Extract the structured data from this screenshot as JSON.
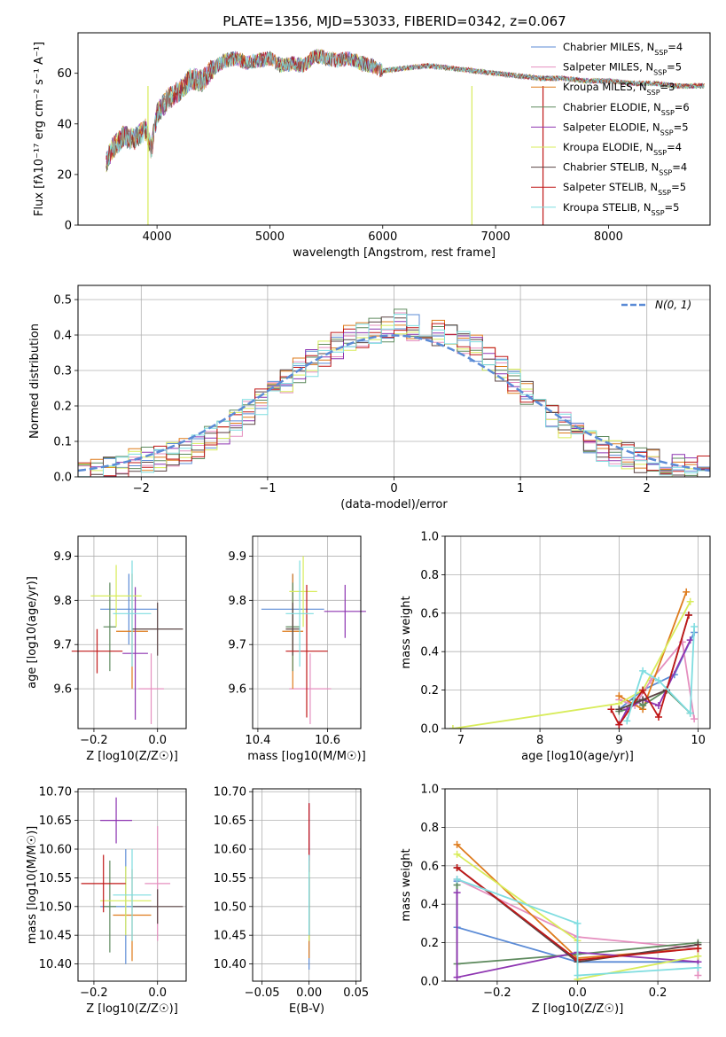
{
  "figure_title": "PLATE=1356, MJD=53033, FIBERID=0342, z=0.067",
  "colors": {
    "chabrier_miles": "#5b8bd6",
    "salpeter_miles": "#e58fbf",
    "kroupa_miles": "#de7b1c",
    "chabrier_elodie": "#5e8a5e",
    "salpeter_elodie": "#8e35b1",
    "kroupa_elodie": "#d8ec5a",
    "chabrier_stelib": "#5a4444",
    "salpeter_stelib": "#c01818",
    "kroupa_stelib": "#7fdde0",
    "gaussian": "#5b8bd6",
    "grid": "#b0b0b0"
  },
  "chart_data": [
    {
      "id": "spectrum",
      "type": "line",
      "title": "PLATE=1356, MJD=53033, FIBERID=0342, z=0.067",
      "xlabel": "wavelength [Angstrom, rest frame]",
      "ylabel": "Flux [f_λ 10^-17 erg cm^-2 s^-1 A^-1]",
      "xlim": [
        3300,
        8900
      ],
      "ylim": [
        0,
        76
      ],
      "xticks": [
        4000,
        5000,
        6000,
        7000,
        8000
      ],
      "yticks": [
        0,
        20,
        40,
        60
      ],
      "grid": false,
      "legend_position": "top-right",
      "x": [
        3550,
        3600,
        3700,
        3800,
        3900,
        3950,
        4000,
        4100,
        4200,
        4300,
        4400,
        4500,
        4600,
        4700,
        4800,
        4900,
        5000,
        5100,
        5200,
        5300,
        5400,
        5500,
        5600,
        5700,
        5800,
        5900,
        6000,
        6200,
        6400,
        6600,
        6800,
        7000,
        7200,
        7400,
        7600,
        7800,
        8000,
        8200,
        8400,
        8600,
        8800
      ],
      "y": [
        25,
        30,
        35,
        34,
        38,
        30,
        44,
        50,
        53,
        58,
        57,
        62,
        65,
        66,
        64,
        65,
        66,
        63,
        64,
        63,
        67,
        66,
        65,
        66,
        64,
        63,
        61,
        62,
        63,
        62,
        61,
        60,
        59,
        58,
        58,
        57,
        57,
        56,
        56,
        55,
        55
      ],
      "series": [
        {
          "name": "Chabrier MILES, N_SSP=4",
          "label": "Chabrier MILES, N",
          "sub": "SSP",
          "value": "=4",
          "color": "#5b8bd6"
        },
        {
          "name": "Salpeter MILES, N_SSP=5",
          "label": "Salpeter MILES, N",
          "sub": "SSP",
          "value": "=5",
          "color": "#e58fbf"
        },
        {
          "name": "Kroupa MILES, N_SSP=3",
          "label": "Kroupa MILES, N",
          "sub": "SSP",
          "value": "=3",
          "color": "#de7b1c"
        },
        {
          "name": "Chabrier ELODIE, N_SSP=6",
          "label": "Chabrier ELODIE, N",
          "sub": "SSP",
          "value": "=6",
          "color": "#5e8a5e"
        },
        {
          "name": "Salpeter ELODIE, N_SSP=5",
          "label": "Salpeter ELODIE, N",
          "sub": "SSP",
          "value": "=5",
          "color": "#8e35b1"
        },
        {
          "name": "Kroupa ELODIE, N_SSP=4",
          "label": "Kroupa ELODIE, N",
          "sub": "SSP",
          "value": "=4",
          "color": "#d8ec5a"
        },
        {
          "name": "Chabrier STELIB, N_SSP=4",
          "label": "Chabrier STELIB, N",
          "sub": "SSP",
          "value": "=4",
          "color": "#5a4444"
        },
        {
          "name": "Salpeter STELIB, N_SSP=5",
          "label": "Salpeter STELIB, N",
          "sub": "SSP",
          "value": "=5",
          "color": "#c01818"
        },
        {
          "name": "Kroupa STELIB, N_SSP=5",
          "label": "Kroupa STELIB, N",
          "sub": "SSP",
          "value": "=5",
          "color": "#7fdde0"
        }
      ],
      "spikes": [
        {
          "x": 3920,
          "color": "#d8ec5a"
        },
        {
          "x": 6790,
          "color": "#d8ec5a"
        },
        {
          "x": 7420,
          "color": "#c01818"
        }
      ]
    },
    {
      "id": "residuals",
      "type": "area",
      "xlabel": "(data-model)/error",
      "ylabel": "Normed distribution",
      "xlim": [
        -2.5,
        2.5
      ],
      "ylim": [
        0,
        0.54
      ],
      "xticks": [
        -2,
        -1,
        0,
        1,
        2
      ],
      "yticks": [
        0.0,
        0.1,
        0.2,
        0.3,
        0.4,
        0.5
      ],
      "grid": true,
      "legend_position": "top-right",
      "legend_label": "N(0, 1)",
      "bin_edges_start": -2.5,
      "bin_width": 0.1,
      "histogram_counts": [
        0.01,
        0.02,
        0.02,
        0.03,
        0.04,
        0.05,
        0.05,
        0.06,
        0.07,
        0.09,
        0.11,
        0.13,
        0.15,
        0.18,
        0.21,
        0.24,
        0.27,
        0.3,
        0.32,
        0.35,
        0.37,
        0.39,
        0.4,
        0.41,
        0.42,
        0.44,
        0.42,
        0.42,
        0.41,
        0.4,
        0.38,
        0.36,
        0.33,
        0.3,
        0.27,
        0.24,
        0.21,
        0.18,
        0.15,
        0.12,
        0.1,
        0.08,
        0.07,
        0.06,
        0.05,
        0.04,
        0.03,
        0.03,
        0.02,
        0.02
      ],
      "series": [
        {
          "name": "Chabrier MILES, N_SSP=4",
          "color": "#5b8bd6"
        },
        {
          "name": "Salpeter MILES, N_SSP=5",
          "color": "#e58fbf"
        },
        {
          "name": "Kroupa MILES, N_SSP=3",
          "color": "#de7b1c"
        },
        {
          "name": "Chabrier ELODIE, N_SSP=6",
          "color": "#5e8a5e"
        },
        {
          "name": "Salpeter ELODIE, N_SSP=5",
          "color": "#8e35b1"
        },
        {
          "name": "Kroupa ELODIE, N_SSP=4",
          "color": "#d8ec5a"
        },
        {
          "name": "Chabrier STELIB, N_SSP=4",
          "color": "#5a4444"
        },
        {
          "name": "Salpeter STELIB, N_SSP=5",
          "color": "#c01818"
        },
        {
          "name": "Kroupa STELIB, N_SSP=5",
          "color": "#7fdde0"
        }
      ]
    },
    {
      "id": "age_vs_z",
      "type": "scatter",
      "xlabel": "Z [log10(Z/Z☉)]",
      "ylabel": "age [log10(age/yr)]",
      "xlim": [
        -0.25,
        0.09
      ],
      "ylim": [
        9.51,
        9.945
      ],
      "xticks": [
        -0.2,
        0.0
      ],
      "yticks": [
        9.6,
        9.7,
        9.8,
        9.9
      ],
      "grid": true,
      "points": [
        {
          "x": -0.09,
          "y": 9.78,
          "xerr": 0.09,
          "yerr": 0.08,
          "color": "#5b8bd6"
        },
        {
          "x": -0.02,
          "y": 9.6,
          "xerr": 0.04,
          "yerr": 0.08,
          "color": "#e58fbf"
        },
        {
          "x": -0.08,
          "y": 9.73,
          "xerr": 0.05,
          "yerr": 0.13,
          "color": "#de7b1c"
        },
        {
          "x": -0.15,
          "y": 9.74,
          "xerr": 0.02,
          "yerr": 0.1,
          "color": "#5e8a5e"
        },
        {
          "x": -0.07,
          "y": 9.68,
          "xerr": 0.04,
          "yerr": 0.15,
          "color": "#8e35b1"
        },
        {
          "x": -0.13,
          "y": 9.81,
          "xerr": 0.08,
          "yerr": 0.07,
          "color": "#d8ec5a"
        },
        {
          "x": 0.0,
          "y": 9.735,
          "xerr": 0.08,
          "yerr": 0.06,
          "color": "#5a4444"
        },
        {
          "x": -0.19,
          "y": 9.685,
          "xerr": 0.08,
          "yerr": 0.05,
          "color": "#c01818"
        },
        {
          "x": -0.08,
          "y": 9.77,
          "xerr": 0.06,
          "yerr": 0.12,
          "color": "#7fdde0"
        }
      ]
    },
    {
      "id": "age_vs_mass",
      "type": "scatter",
      "xlabel": "mass [log10(M/M☉)]",
      "ylabel": "",
      "xlim": [
        10.385,
        10.695
      ],
      "ylim": [
        9.51,
        9.945
      ],
      "xticks": [
        10.4,
        10.6
      ],
      "yticks": [
        9.6,
        9.7,
        9.8,
        9.9
      ],
      "grid": true,
      "points": [
        {
          "x": 10.5,
          "y": 9.78,
          "xerr": 0.09,
          "yerr": 0.08,
          "color": "#5b8bd6"
        },
        {
          "x": 10.55,
          "y": 9.6,
          "xerr": 0.06,
          "yerr": 0.08,
          "color": "#e58fbf"
        },
        {
          "x": 10.5,
          "y": 9.73,
          "xerr": 0.03,
          "yerr": 0.13,
          "color": "#de7b1c"
        },
        {
          "x": 10.5,
          "y": 9.74,
          "xerr": 0.02,
          "yerr": 0.1,
          "color": "#5e8a5e"
        },
        {
          "x": 10.65,
          "y": 9.775,
          "xerr": 0.06,
          "yerr": 0.06,
          "color": "#8e35b1"
        },
        {
          "x": 10.53,
          "y": 9.82,
          "xerr": 0.04,
          "yerr": 0.08,
          "color": "#d8ec5a"
        },
        {
          "x": 10.5,
          "y": 9.735,
          "xerr": 0.02,
          "yerr": 0.06,
          "color": "#5a4444"
        },
        {
          "x": 10.54,
          "y": 9.685,
          "xerr": 0.06,
          "yerr": 0.15,
          "color": "#c01818"
        },
        {
          "x": 10.52,
          "y": 9.77,
          "xerr": 0.04,
          "yerr": 0.12,
          "color": "#7fdde0"
        }
      ]
    },
    {
      "id": "massweight_vs_age",
      "type": "line",
      "xlabel": "age [log10(age/yr)]",
      "ylabel": "mass weight",
      "xlim": [
        6.8,
        10.15
      ],
      "ylim": [
        0,
        1.0
      ],
      "xticks": [
        7,
        8,
        9,
        10
      ],
      "yticks": [
        0.0,
        0.2,
        0.4,
        0.6,
        0.8,
        1.0
      ],
      "grid": true,
      "series": [
        {
          "name": "Chabrier MILES, N_SSP=4",
          "color": "#5b8bd6",
          "x": [
            9.0,
            9.3,
            9.7,
            9.95
          ],
          "y": [
            0.1,
            0.2,
            0.28,
            0.5
          ]
        },
        {
          "name": "Salpeter MILES, N_SSP=5",
          "color": "#e58fbf",
          "x": [
            9.0,
            9.2,
            9.4,
            9.8,
            9.95
          ],
          "y": [
            0.15,
            0.12,
            0.25,
            0.45,
            0.05
          ]
        },
        {
          "name": "Kroupa MILES, N_SSP=3",
          "color": "#de7b1c",
          "x": [
            9.0,
            9.3,
            9.85
          ],
          "y": [
            0.17,
            0.1,
            0.71
          ]
        },
        {
          "name": "Chabrier ELODIE, N_SSP=6",
          "color": "#5e8a5e",
          "x": [
            9.0,
            9.1,
            9.2,
            9.3,
            9.6,
            9.9
          ],
          "y": [
            0.09,
            0.1,
            0.15,
            0.12,
            0.2,
            0.08
          ]
        },
        {
          "name": "Salpeter ELODIE, N_SSP=5",
          "color": "#8e35b1",
          "x": [
            9.0,
            9.1,
            9.3,
            9.5,
            9.9
          ],
          "y": [
            0.02,
            0.1,
            0.15,
            0.12,
            0.46
          ]
        },
        {
          "name": "Kroupa ELODIE, N_SSP=4",
          "color": "#d8ec5a",
          "x": [
            6.9,
            9.0,
            9.3,
            9.9
          ],
          "y": [
            0.0,
            0.13,
            0.2,
            0.66
          ]
        },
        {
          "name": "Chabrier STELIB, N_SSP=4",
          "color": "#5a4444",
          "x": [
            9.0,
            9.3,
            9.6,
            9.88
          ],
          "y": [
            0.1,
            0.15,
            0.2,
            0.59
          ]
        },
        {
          "name": "Salpeter STELIB, N_SSP=5",
          "color": "#c01818",
          "x": [
            8.9,
            9.0,
            9.3,
            9.5,
            9.88
          ],
          "y": [
            0.1,
            0.02,
            0.2,
            0.06,
            0.59
          ]
        },
        {
          "name": "Kroupa STELIB, N_SSP=5",
          "color": "#7fdde0",
          "x": [
            9.1,
            9.3,
            9.5,
            9.9,
            9.95
          ],
          "y": [
            0.04,
            0.3,
            0.25,
            0.08,
            0.53
          ]
        }
      ]
    },
    {
      "id": "mass_vs_z",
      "type": "scatter",
      "xlabel": "Z [log10(Z/Z☉)]",
      "ylabel": "mass [log10(M/M☉)]",
      "xlim": [
        -0.25,
        0.09
      ],
      "ylim": [
        10.37,
        10.705
      ],
      "xticks": [
        -0.2,
        0.0
      ],
      "yticks": [
        10.4,
        10.45,
        10.5,
        10.55,
        10.6,
        10.65,
        10.7
      ],
      "grid": true,
      "points": [
        {
          "x": -0.1,
          "y": 10.5,
          "xerr": 0.08,
          "yerr": 0.1,
          "color": "#5b8bd6"
        },
        {
          "x": 0.0,
          "y": 10.54,
          "xerr": 0.04,
          "yerr": 0.1,
          "color": "#e58fbf"
        },
        {
          "x": -0.08,
          "y": 10.485,
          "xerr": 0.06,
          "yerr": 0.08,
          "color": "#de7b1c"
        },
        {
          "x": -0.15,
          "y": 10.5,
          "xerr": 0.02,
          "yerr": 0.08,
          "color": "#5e8a5e"
        },
        {
          "x": -0.13,
          "y": 10.65,
          "xerr": 0.05,
          "yerr": 0.04,
          "color": "#8e35b1"
        },
        {
          "x": -0.1,
          "y": 10.51,
          "xerr": 0.08,
          "yerr": 0.06,
          "color": "#d8ec5a"
        },
        {
          "x": 0.0,
          "y": 10.5,
          "xerr": 0.08,
          "yerr": 0.03,
          "color": "#5a4444"
        },
        {
          "x": -0.17,
          "y": 10.54,
          "xerr": 0.07,
          "yerr": 0.05,
          "color": "#c01818"
        },
        {
          "x": -0.08,
          "y": 10.52,
          "xerr": 0.06,
          "yerr": 0.08,
          "color": "#7fdde0"
        }
      ]
    },
    {
      "id": "mass_vs_ebv",
      "type": "scatter",
      "xlabel": "E(B-V)",
      "ylabel": "",
      "xlim": [
        -0.06,
        0.055
      ],
      "ylim": [
        10.37,
        10.705
      ],
      "xticks": [
        -0.05,
        0.0,
        0.05
      ],
      "yticks": [
        10.4,
        10.45,
        10.5,
        10.55,
        10.6,
        10.65,
        10.7
      ],
      "grid": true,
      "points": [
        {
          "x": 0.0,
          "y": 10.5,
          "xerr": 0.0,
          "yerr": 0.11,
          "color": "#5b8bd6"
        },
        {
          "x": 0.0,
          "y": 10.54,
          "xerr": 0.0,
          "yerr": 0.09,
          "color": "#e58fbf"
        },
        {
          "x": 0.0,
          "y": 10.49,
          "xerr": 0.0,
          "yerr": 0.08,
          "color": "#de7b1c"
        },
        {
          "x": 0.0,
          "y": 10.5,
          "xerr": 0.0,
          "yerr": 0.06,
          "color": "#5e8a5e"
        },
        {
          "x": 0.0,
          "y": 10.63,
          "xerr": 0.0,
          "yerr": 0.05,
          "color": "#8e35b1"
        },
        {
          "x": 0.0,
          "y": 10.51,
          "xerr": 0.0,
          "yerr": 0.07,
          "color": "#d8ec5a"
        },
        {
          "x": 0.0,
          "y": 10.5,
          "xerr": 0.0,
          "yerr": 0.05,
          "color": "#5a4444"
        },
        {
          "x": 0.0,
          "y": 10.62,
          "xerr": 0.0,
          "yerr": 0.06,
          "color": "#c01818"
        },
        {
          "x": 0.0,
          "y": 10.52,
          "xerr": 0.0,
          "yerr": 0.07,
          "color": "#7fdde0"
        }
      ]
    },
    {
      "id": "massweight_vs_z",
      "type": "line",
      "xlabel": "Z [log10(Z/Z☉)]",
      "ylabel": "mass weight",
      "xlim": [
        -0.33,
        0.33
      ],
      "ylim": [
        0,
        1.0
      ],
      "xticks": [
        -0.2,
        0.0,
        0.2
      ],
      "yticks": [
        0.0,
        0.2,
        0.4,
        0.6,
        0.8,
        1.0
      ],
      "grid": true,
      "series": [
        {
          "name": "Chabrier MILES, N_SSP=4",
          "color": "#5b8bd6",
          "x": [
            -0.3,
            -0.3,
            0.0,
            0.3
          ],
          "y": [
            0.52,
            0.28,
            0.1,
            0.1
          ]
        },
        {
          "name": "Salpeter MILES, N_SSP=5",
          "color": "#e58fbf",
          "x": [
            -0.3,
            0.0,
            0.3,
            0.3
          ],
          "y": [
            0.53,
            0.23,
            0.17,
            0.03
          ]
        },
        {
          "name": "Kroupa MILES, N_SSP=3",
          "color": "#de7b1c",
          "x": [
            -0.3,
            0.0,
            0.3
          ],
          "y": [
            0.71,
            0.12,
            0.17
          ]
        },
        {
          "name": "Chabrier ELODIE, N_SSP=6",
          "color": "#5e8a5e",
          "x": [
            -0.3,
            -0.3,
            0.0,
            0.3
          ],
          "y": [
            0.5,
            0.09,
            0.14,
            0.2
          ]
        },
        {
          "name": "Salpeter ELODIE, N_SSP=5",
          "color": "#8e35b1",
          "x": [
            -0.3,
            -0.3,
            0.0,
            0.3
          ],
          "y": [
            0.46,
            0.02,
            0.15,
            0.1
          ]
        },
        {
          "name": "Kroupa ELODIE, N_SSP=4",
          "color": "#d8ec5a",
          "x": [
            -0.3,
            0.0,
            0.0,
            0.3
          ],
          "y": [
            0.66,
            0.21,
            0.01,
            0.13
          ]
        },
        {
          "name": "Chabrier STELIB, N_SSP=4",
          "color": "#5a4444",
          "x": [
            -0.3,
            0.0,
            0.3
          ],
          "y": [
            0.59,
            0.1,
            0.19
          ]
        },
        {
          "name": "Salpeter STELIB, N_SSP=5",
          "color": "#c01818",
          "x": [
            -0.3,
            0.0,
            0.3
          ],
          "y": [
            0.59,
            0.11,
            0.17
          ]
        },
        {
          "name": "Kroupa STELIB, N_SSP=5",
          "color": "#7fdde0",
          "x": [
            -0.3,
            0.0,
            0.0,
            0.3
          ],
          "y": [
            0.53,
            0.3,
            0.03,
            0.07
          ]
        }
      ]
    }
  ]
}
